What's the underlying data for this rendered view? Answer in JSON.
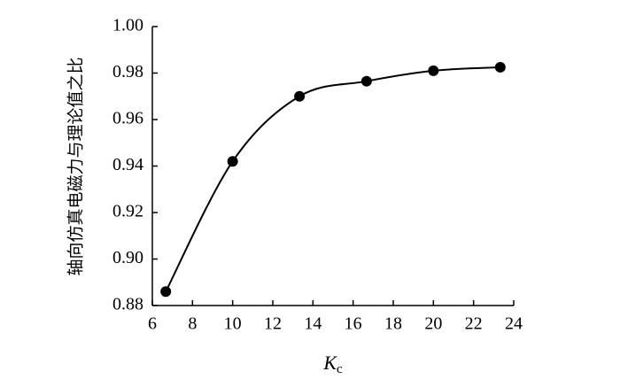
{
  "chart_data": {
    "type": "line",
    "y_label": "轴向仿真电磁力与理论值之比",
    "x_label": [
      "K",
      "c"
    ],
    "x": [
      6.67,
      10,
      13.33,
      16.67,
      20,
      23.33
    ],
    "series": [
      {
        "color": "#000000",
        "values": [
          0.886,
          0.942,
          0.97,
          0.9765,
          0.981,
          0.9825
        ]
      }
    ],
    "xlim": [
      6,
      24
    ],
    "xticks": [
      6,
      8,
      10,
      12,
      14,
      16,
      18,
      20,
      22,
      24
    ],
    "ylim": [
      0.88,
      1.0
    ],
    "yticks": [
      0.88,
      {
        "value": 0.9,
        "label": "0.90"
      },
      0.92,
      0.94,
      0.96,
      0.98,
      {
        "value": 1,
        "label": "1.00"
      }
    ],
    "smooth": true,
    "markers": true
  }
}
